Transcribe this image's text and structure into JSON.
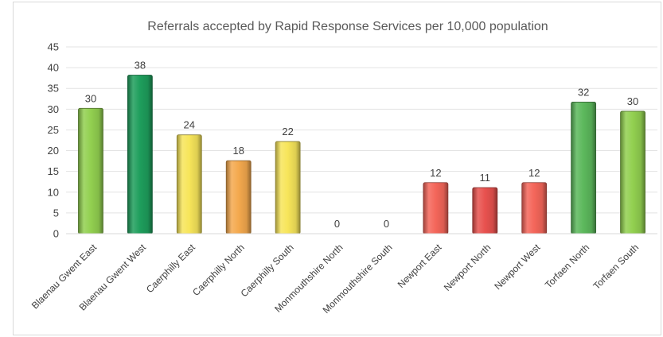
{
  "chart_data": {
    "type": "bar",
    "title": "Referrals accepted by Rapid Response Services per 10,000 population",
    "xlabel": "",
    "ylabel": "",
    "ylim": [
      0,
      45
    ],
    "yticks": [
      0,
      5,
      10,
      15,
      20,
      25,
      30,
      35,
      40,
      45
    ],
    "grid": true,
    "categories": [
      "Blaenau Gwent East",
      "Blaenau Gwent West",
      "Caerphilly East",
      "Caerphilly North",
      "Caerphilly South",
      "Monmouthshire North",
      "Monmouthshire South",
      "Newport East",
      "Newport North",
      "Newport West",
      "Torfaen North",
      "Torfaen South"
    ],
    "values": [
      30.2,
      38.2,
      23.8,
      17.6,
      22.2,
      0,
      0,
      12.3,
      11.1,
      12.3,
      31.7,
      29.5
    ],
    "data_labels": [
      "30",
      "38",
      "24",
      "18",
      "22",
      "0",
      "0",
      "12",
      "11",
      "12",
      "32",
      "30"
    ],
    "colors": [
      "#92d050",
      "#1e9e5c",
      "#f7e55a",
      "#f4a94e",
      "#f7e55a",
      "#d0d0d0",
      "#d0d0d0",
      "#f4665a",
      "#e8524f",
      "#f4665a",
      "#5cb85c",
      "#92d050"
    ]
  }
}
